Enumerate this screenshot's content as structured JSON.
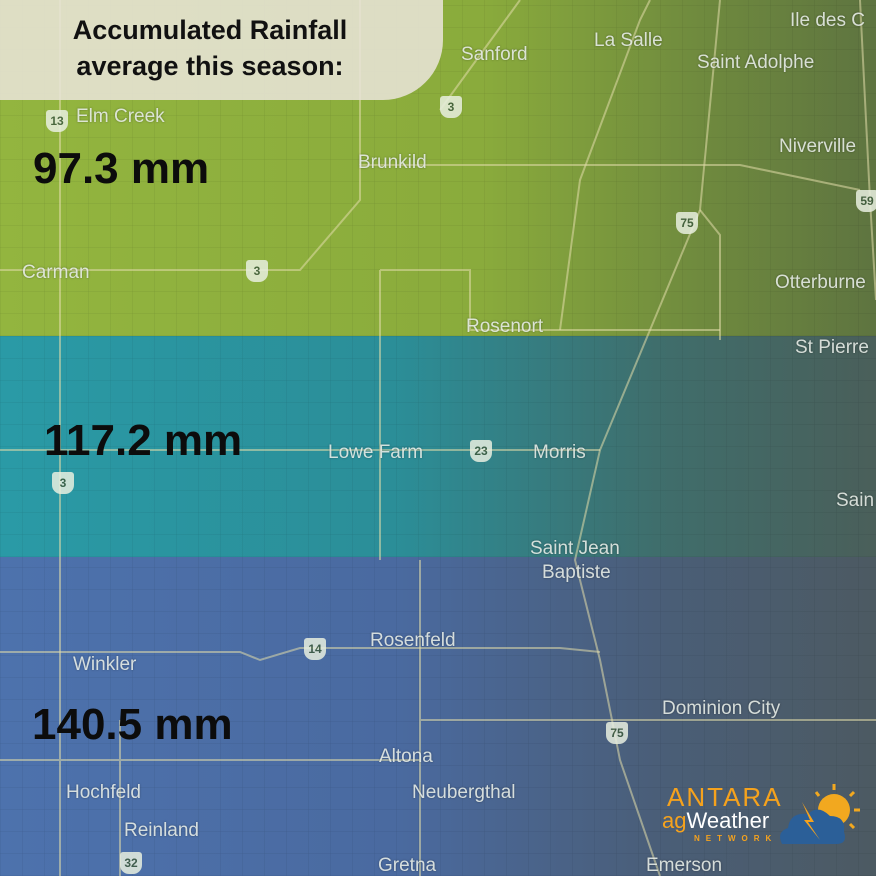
{
  "title": {
    "line1": "Accumulated Rainfall",
    "line2": "average this season:"
  },
  "zones": [
    {
      "value": "97.3 mm",
      "color": "#8fb03d"
    },
    {
      "value": "117.2 mm",
      "color": "#2b929d"
    },
    {
      "value": "140.5 mm",
      "color": "#4c6fa8"
    }
  ],
  "places": [
    "Elm Creek",
    "Sanford",
    "La Salle",
    "Ile des C",
    "Saint Adolphe",
    "Niverville",
    "Brunkild",
    "Carman",
    "Otterburne",
    "Rosenort",
    "St Pierre",
    "Lowe Farm",
    "Morris",
    "Sain",
    "Saint Jean",
    "Baptiste",
    "Winkler",
    "Rosenfeld",
    "Dominion City",
    "Altona",
    "Hochfeld",
    "Neubergthal",
    "Reinland",
    "Gretna",
    "Emerson"
  ],
  "highways": [
    "13",
    "3",
    "3",
    "75",
    "59",
    "3",
    "23",
    "14",
    "75",
    "32"
  ],
  "logo": {
    "brand": "ANTARA",
    "sub_prefix": "ag",
    "sub": "Weather",
    "network": "NETWORK",
    "icon": "storm-cloud-sun-icon"
  }
}
